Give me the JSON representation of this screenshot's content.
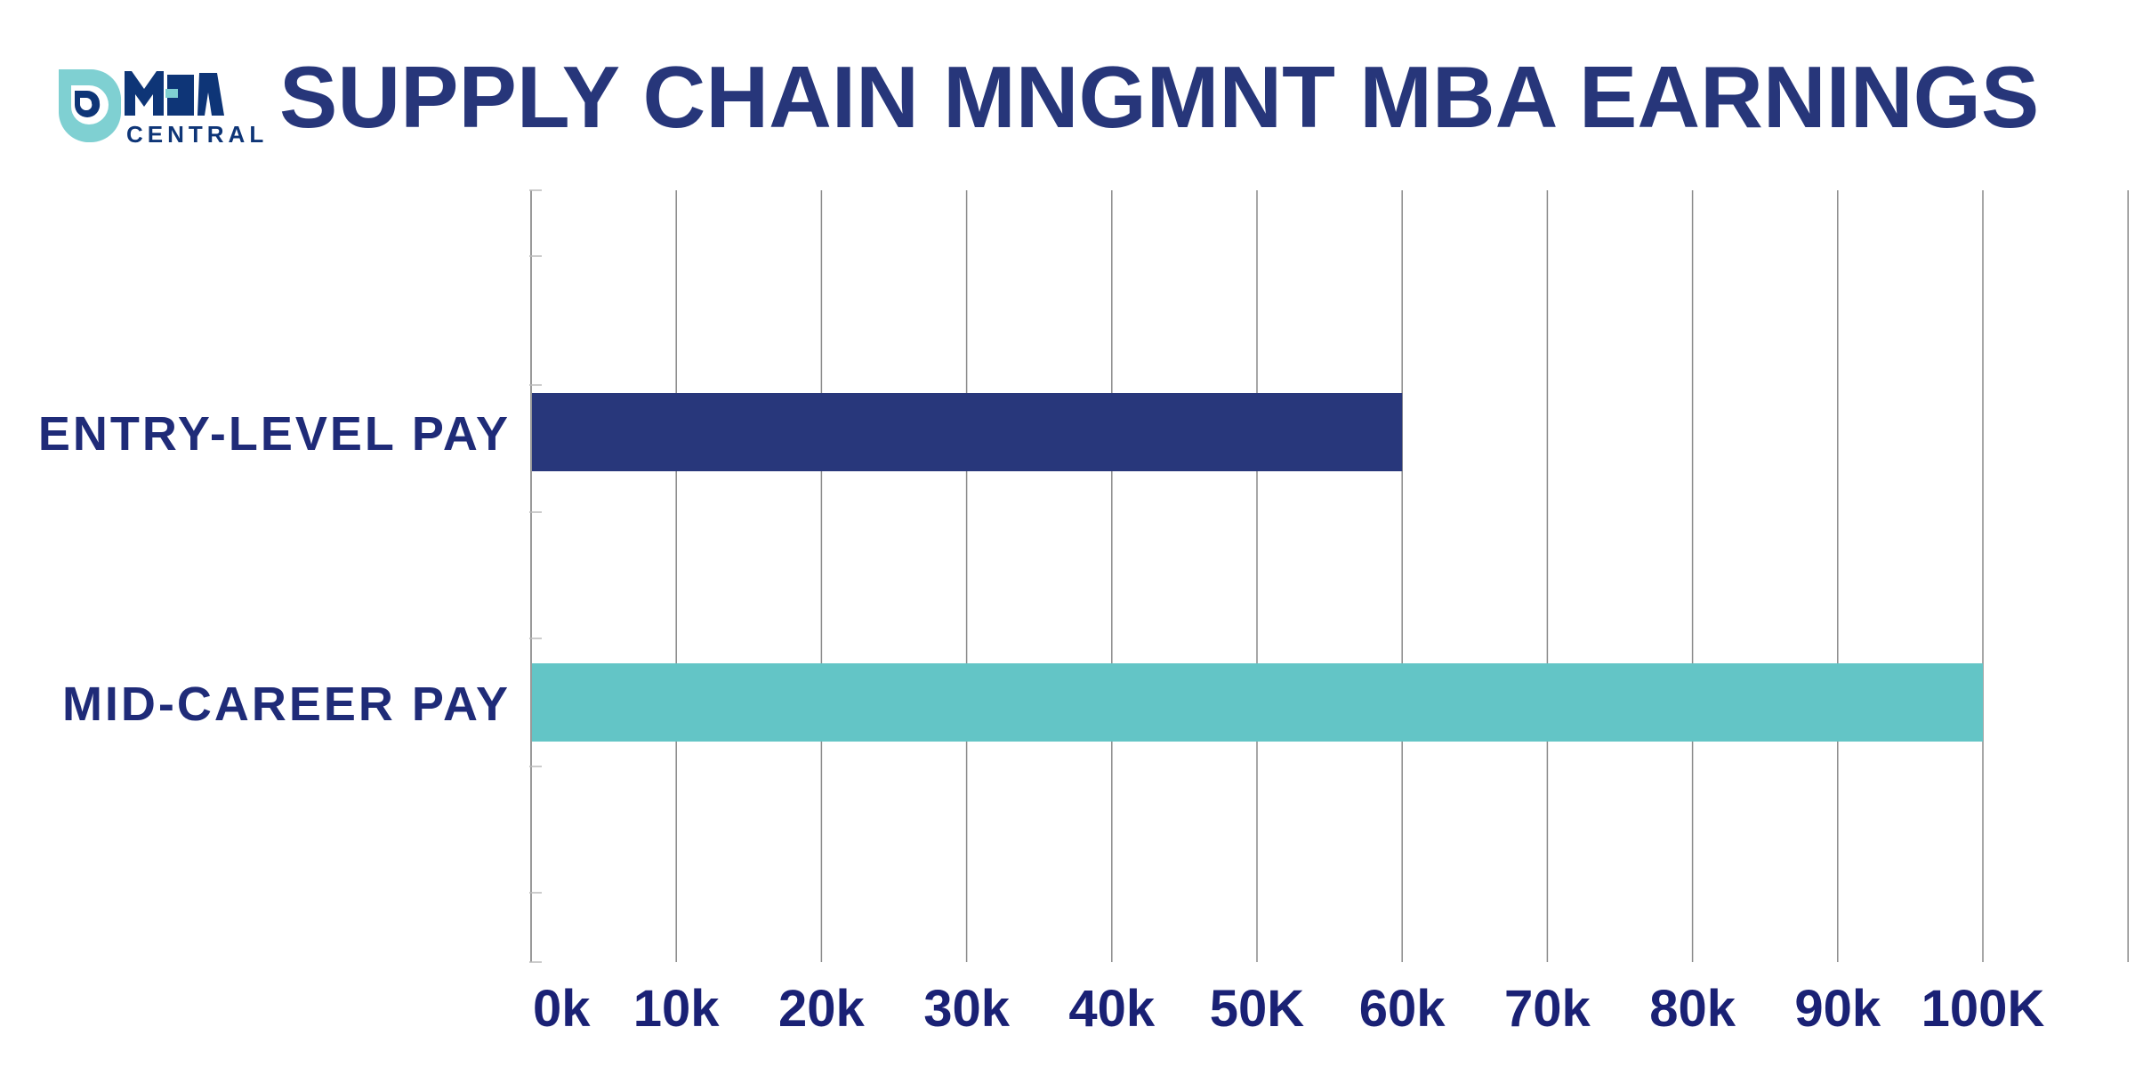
{
  "logo": {
    "text_top": "MBA",
    "text_bottom": "CENTRAL",
    "colors": {
      "teal": "#7fd0d2",
      "navy": "#0e3577"
    }
  },
  "title": "SUPPLY CHAIN MNGMNT MBA EARNINGS",
  "chart_data": {
    "type": "bar",
    "orientation": "horizontal",
    "title": "SUPPLY CHAIN MNGMNT MBA EARNINGS",
    "categories": [
      "ENTRY-LEVEL PAY",
      "MID-CAREER PAY"
    ],
    "values": [
      60000,
      100000
    ],
    "colors": [
      "#28377b",
      "#63c5c6"
    ],
    "xlim": [
      0,
      110000
    ],
    "xticks": [
      0,
      10000,
      20000,
      30000,
      40000,
      50000,
      60000,
      70000,
      80000,
      90000,
      100000
    ],
    "xtick_labels": [
      "0k",
      "10k",
      "20k",
      "30k",
      "40k",
      "50K",
      "60k",
      "70k",
      "80k",
      "90k",
      "100K"
    ],
    "grid": "vertical",
    "xlabel": "",
    "ylabel": ""
  }
}
